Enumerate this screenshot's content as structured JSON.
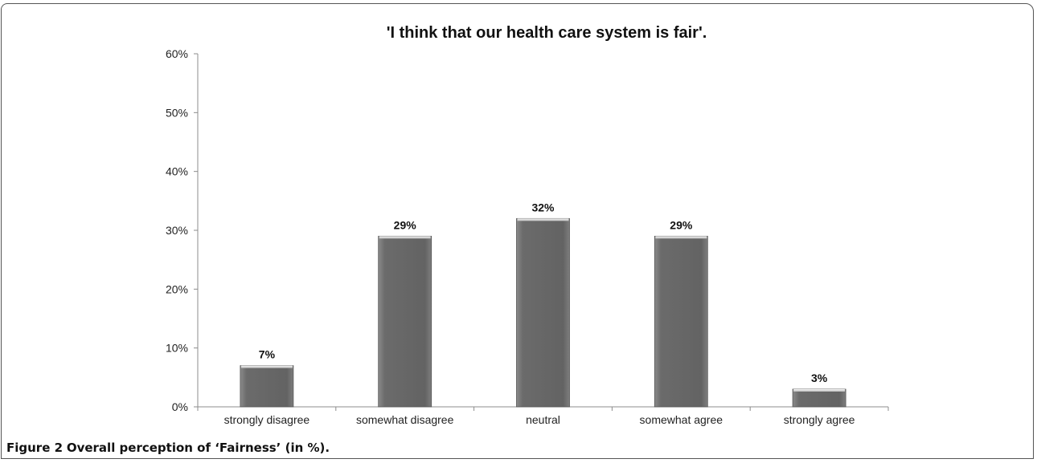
{
  "chart_data": {
    "type": "bar",
    "title": "'I think that our health care system is fair'.",
    "xlabel": "",
    "ylabel": "",
    "categories": [
      "strongly disagree",
      "somewhat disagree",
      "neutral",
      "somewhat agree",
      "strongly agree"
    ],
    "values": [
      7,
      29,
      32,
      29,
      3
    ],
    "data_labels": [
      "7%",
      "29%",
      "32%",
      "29%",
      "3%"
    ],
    "ylim": [
      0,
      60
    ],
    "yticks": [
      0,
      10,
      20,
      30,
      40,
      50,
      60
    ],
    "ytick_labels": [
      "0%",
      "10%",
      "20%",
      "30%",
      "40%",
      "50%",
      "60%"
    ],
    "grid": false,
    "legend": "none",
    "bar_color": "#6a6a6a"
  },
  "caption": {
    "label": "Figure 2",
    "text": "Overall perception of ‘Fairness’ (in %)."
  }
}
